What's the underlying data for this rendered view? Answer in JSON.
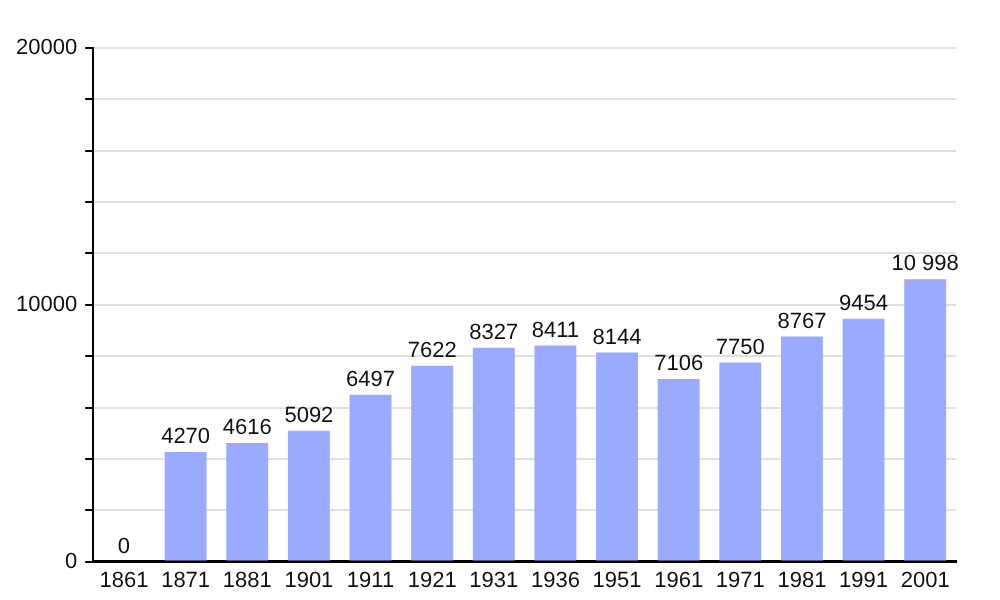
{
  "chart_data": {
    "type": "bar",
    "categories": [
      "1861",
      "1871",
      "1881",
      "1901",
      "1911",
      "1921",
      "1931",
      "1936",
      "1951",
      "1961",
      "1971",
      "1981",
      "1991",
      "2001"
    ],
    "values": [
      0,
      4270,
      4616,
      5092,
      6497,
      7622,
      8327,
      8411,
      8144,
      7106,
      7750,
      8767,
      9454,
      10998
    ],
    "value_labels": [
      "0",
      "4270",
      "4616",
      "5092",
      "6497",
      "7622",
      "8327",
      "8411",
      "8144",
      "7106",
      "7750",
      "8767",
      "9454",
      "10 998"
    ],
    "color": "#99aaff",
    "ylim": [
      0,
      20000
    ],
    "yticks": [
      0,
      {
        "value": 2000,
        "label": null
      },
      {
        "value": 4000,
        "label": null
      },
      {
        "value": 6000,
        "label": null
      },
      {
        "value": 8000,
        "label": null
      },
      10000,
      {
        "value": 12000,
        "label": null
      },
      {
        "value": 14000,
        "label": null
      },
      {
        "value": 16000,
        "label": null
      },
      {
        "value": 18000,
        "label": null
      },
      20000
    ],
    "grid": "y",
    "legend": false
  }
}
